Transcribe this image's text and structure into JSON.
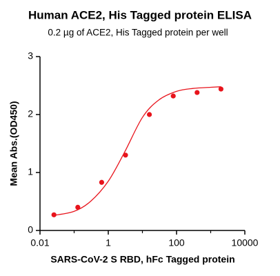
{
  "chart_data": {
    "type": "scatter",
    "title": "Human ACE2, His Tagged protein ELISA",
    "subtitle": "0.2 µg of ACE2, His Tagged protein per well",
    "x_label": "SARS-CoV-2 S RBD, hFc Tagged protein",
    "y_label": "Mean Abs.(OD450)",
    "x_scale": "log",
    "xlim": [
      0.01,
      10000
    ],
    "xticks": [
      0.01,
      1,
      100,
      10000
    ],
    "xminorticks": [
      0.1,
      10,
      1000
    ],
    "ylim": [
      0,
      3
    ],
    "yticks": [
      0,
      1,
      2,
      3
    ],
    "grid": false,
    "x": [
      0.0256,
      0.128,
      0.64,
      3.2,
      16,
      80,
      400,
      2000
    ],
    "series": [
      {
        "color": "#e8141c",
        "values": [
          0.27,
          0.4,
          0.83,
          1.3,
          2.0,
          2.32,
          2.38,
          2.44
        ]
      }
    ],
    "curve": {
      "color": "#e8141c",
      "x": [
        0.0256,
        0.1,
        0.3,
        1,
        3,
        10,
        30,
        100,
        300,
        1000,
        2000
      ],
      "values": [
        0.26,
        0.33,
        0.5,
        0.85,
        1.35,
        1.95,
        2.25,
        2.4,
        2.45,
        2.47,
        2.48
      ]
    }
  }
}
